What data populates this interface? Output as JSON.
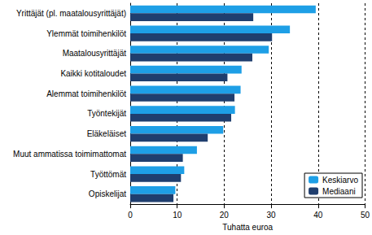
{
  "chart_data": {
    "type": "bar",
    "orientation": "horizontal",
    "x_label": "Tuhatta euroa",
    "categories": [
      "Yrittäjät (pl. maatalousyrittäjät)",
      "Ylemmät toimihenkilöt",
      "Maatalousyrittäjät",
      "Kaikki kotitaloudet",
      "Alemmat toimihenkilöt",
      "Työntekijät",
      "Eläkeläiset",
      "Muut ammatissa toimimattomat",
      "Työttömät",
      "Opiskelijat"
    ],
    "series": [
      {
        "name": "Keskiarvo",
        "color": "#1e9fe6",
        "values": [
          39.5,
          34.0,
          29.5,
          23.7,
          23.5,
          22.3,
          19.8,
          14.2,
          11.5,
          9.6
        ]
      },
      {
        "name": "Mediaani",
        "color": "#1f3e6e",
        "values": [
          26.2,
          30.2,
          26.0,
          20.7,
          22.2,
          21.5,
          16.5,
          11.2,
          10.8,
          9.2
        ]
      }
    ],
    "xlim": [
      0,
      50
    ],
    "xticks": [
      0,
      10,
      20,
      30,
      40,
      50
    ],
    "grid": true,
    "legend": "lower right"
  }
}
